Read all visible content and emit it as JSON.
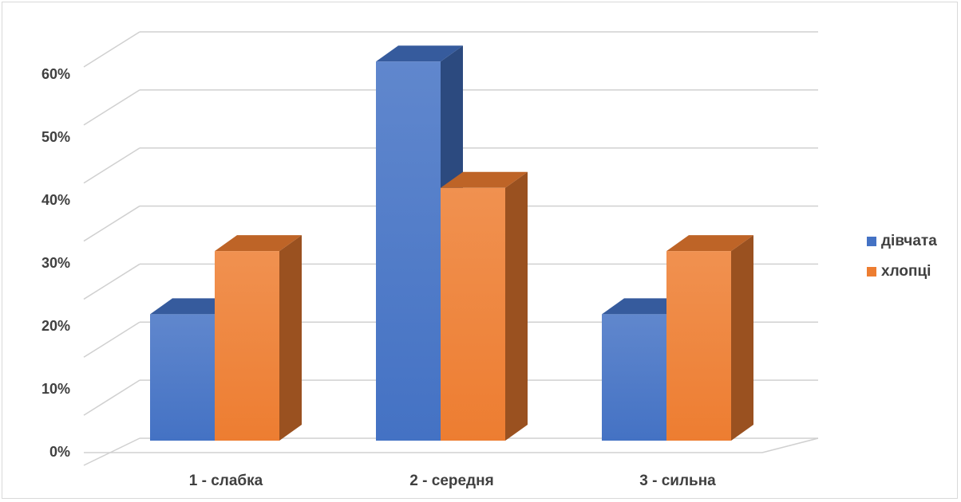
{
  "chart_data": {
    "type": "bar",
    "style": "3d-clustered-column",
    "categories": [
      "1 - слабка",
      "2 - середня",
      "3 - сильна"
    ],
    "series": [
      {
        "name": "дівчата",
        "values": [
          0.2,
          0.6,
          0.2
        ],
        "color": "#4472c4"
      },
      {
        "name": "хлопці",
        "values": [
          0.3,
          0.4,
          0.3
        ],
        "color": "#ed7d31"
      }
    ],
    "y_tick_labels": [
      "0%",
      "10%",
      "20%",
      "30%",
      "40%",
      "50%",
      "60%"
    ],
    "ylim": [
      0,
      0.65
    ],
    "grid": true,
    "legend_position": "right"
  }
}
